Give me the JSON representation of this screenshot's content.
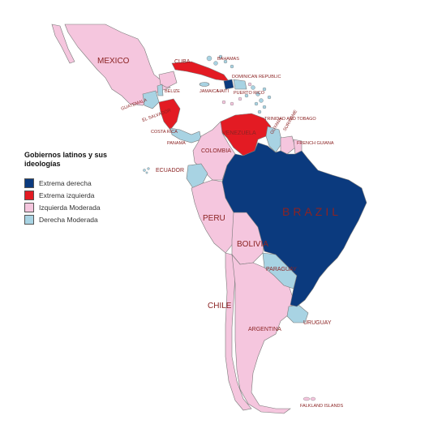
{
  "legend": {
    "title_line1": "Gobiernos latinos y sus",
    "title_line2": "ideologías",
    "items": [
      {
        "label": "Extrema derecha",
        "color": "#0b3a7e"
      },
      {
        "label": "Extrema izquierda",
        "color": "#e31b23"
      },
      {
        "label": "Izquierda Moderada",
        "color": "#f5c6de"
      },
      {
        "label": "Derecha Moderada",
        "color": "#a8d3e3"
      }
    ]
  },
  "countries": {
    "mexico": "MEXICO",
    "cuba": "CUBA",
    "bahamas": "BAHAMAS",
    "belize": "BELIZE",
    "jamaica": "JAMAICA",
    "haiti": "HAITI",
    "dominican_republic": "DOMINICAN REPUBLIC",
    "puerto_rico": "PUERTO RICO",
    "guatemala": "GUATEMALA",
    "el_salvador": "EL SALVADOR",
    "costa_rica": "COSTA RICA",
    "panama": "PANAMA",
    "venezuela": "VENEZUELA",
    "guyana": "GUYANA",
    "suriname": "SURINAME",
    "french_guiana": "FRENCH GUIANA",
    "colombia": "COLOMBIA",
    "ecuador": "ECUADOR",
    "peru": "PERU",
    "brazil": "BRAZIL",
    "bolivia": "BOLIVIA",
    "paraguay": "PARAGUAY",
    "chile": "CHILE",
    "argentina": "ARGENTINA",
    "uruguay": "URUGUAY",
    "trinidad": "TRINIDAD AND TOBAGO",
    "falklands": "FALKLAND ISLANDS"
  },
  "colors": {
    "extreme_right": "#0b3a7e",
    "extreme_left": "#e31b23",
    "moderate_left": "#f5c6de",
    "moderate_right": "#a8d3e3"
  }
}
